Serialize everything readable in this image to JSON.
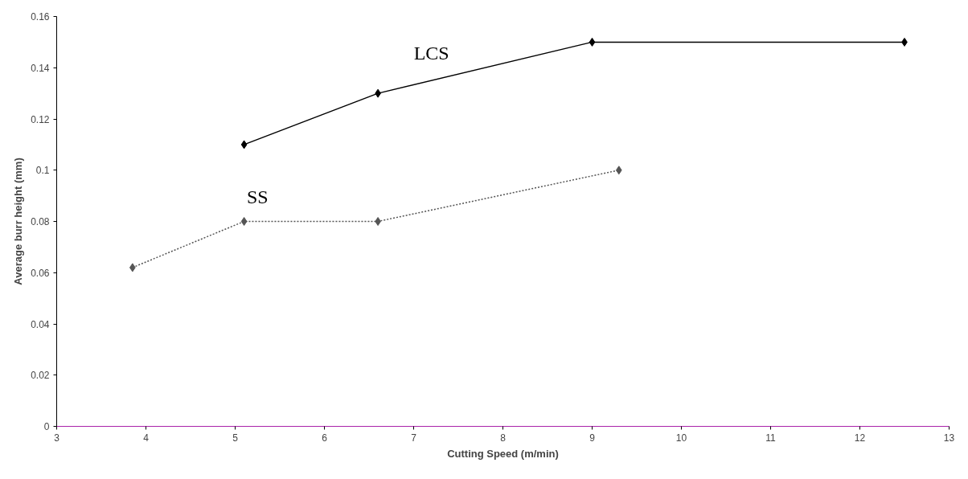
{
  "chart_data": {
    "type": "line",
    "xlabel": "Cutting Speed (m/min)",
    "ylabel": "Average burr height (mm)",
    "xlim": [
      3,
      13
    ],
    "xticks": [
      3,
      4,
      5,
      6,
      7,
      8,
      9,
      10,
      11,
      12,
      13
    ],
    "ylim": [
      0,
      0.16
    ],
    "yticks": [
      0,
      0.02,
      0.04,
      0.06,
      0.08,
      0.1,
      0.12,
      0.14,
      0.16
    ],
    "grid": false,
    "series": [
      {
        "name": "LCS",
        "color": "#000000",
        "x": [
          5.1,
          6.6,
          9.0,
          12.5
        ],
        "values": [
          0.11,
          0.13,
          0.15,
          0.15
        ],
        "marker": "diamond",
        "line_style": "solid"
      },
      {
        "name": "SS",
        "color": "#555555",
        "x": [
          3.85,
          5.1,
          6.6,
          9.3
        ],
        "values": [
          0.062,
          0.08,
          0.08,
          0.1
        ],
        "marker": "diamond",
        "line_style": "dotted"
      }
    ]
  }
}
